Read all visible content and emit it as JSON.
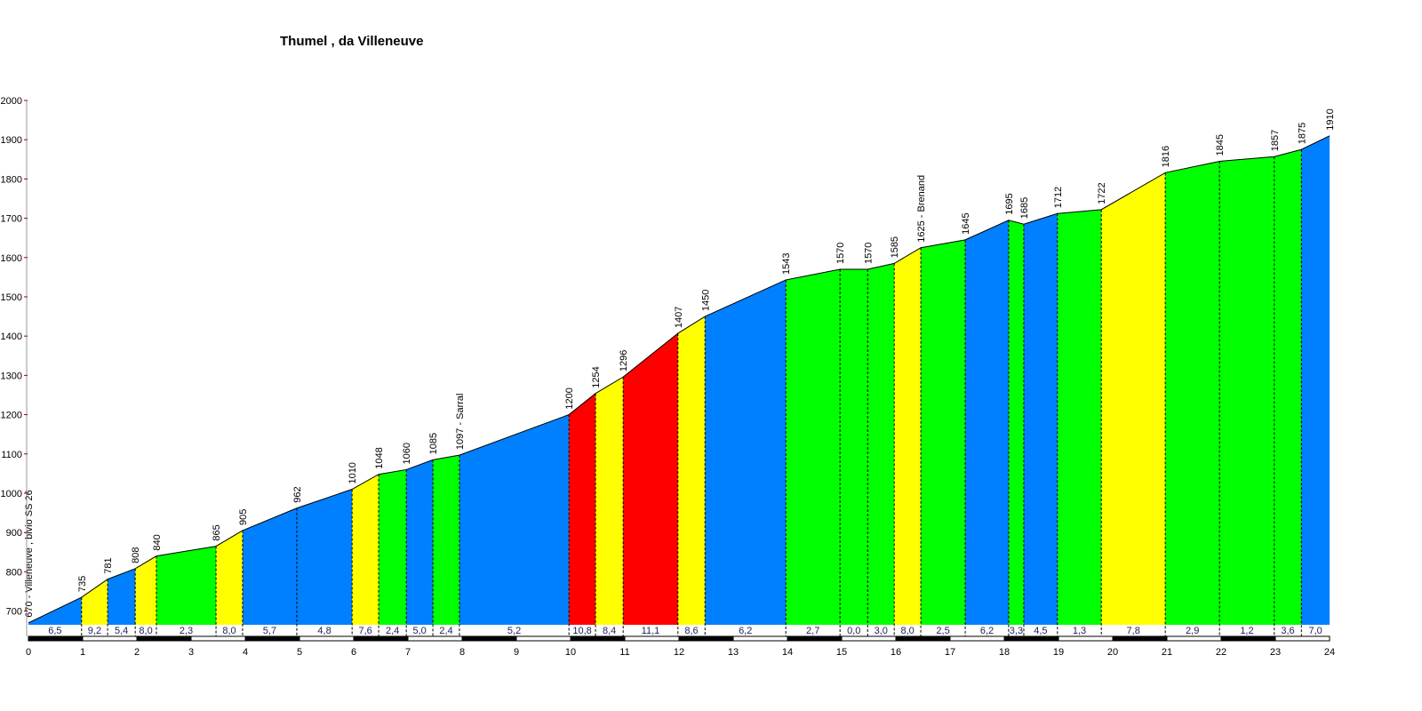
{
  "chart_data": {
    "type": "area",
    "title": "Thumel , da Villeneuve",
    "xlabel": "",
    "ylabel": "",
    "xlim": [
      0,
      24
    ],
    "ylim": [
      665,
      2000
    ],
    "x_ticks": [
      0,
      1,
      2,
      3,
      4,
      5,
      6,
      7,
      8,
      9,
      10,
      11,
      12,
      13,
      14,
      15,
      16,
      17,
      18,
      19,
      20,
      21,
      22,
      23,
      24
    ],
    "y_ticks": [
      700,
      800,
      900,
      1000,
      1100,
      1200,
      1300,
      1400,
      1500,
      1600,
      1700,
      1800,
      1900,
      2000
    ],
    "points": [
      {
        "km": 0.0,
        "elev": 670,
        "label": "670 - Villeneuve , bivio SS 26"
      },
      {
        "km": 0.98,
        "elev": 735,
        "label": "735"
      },
      {
        "km": 1.46,
        "elev": 781,
        "label": "781"
      },
      {
        "km": 1.97,
        "elev": 808,
        "label": "808"
      },
      {
        "km": 2.36,
        "elev": 840,
        "label": "840"
      },
      {
        "km": 3.46,
        "elev": 865,
        "label": "865"
      },
      {
        "km": 3.95,
        "elev": 905,
        "label": "905"
      },
      {
        "km": 4.95,
        "elev": 962,
        "label": "962"
      },
      {
        "km": 5.97,
        "elev": 1010,
        "label": "1010"
      },
      {
        "km": 6.46,
        "elev": 1048,
        "label": "1048"
      },
      {
        "km": 6.97,
        "elev": 1060,
        "label": "1060"
      },
      {
        "km": 7.46,
        "elev": 1085,
        "label": "1085"
      },
      {
        "km": 7.95,
        "elev": 1097,
        "label": "1097 - Sarral"
      },
      {
        "km": 9.97,
        "elev": 1200,
        "label": "1200"
      },
      {
        "km": 10.46,
        "elev": 1254,
        "label": "1254"
      },
      {
        "km": 10.97,
        "elev": 1296,
        "label": "1296"
      },
      {
        "km": 11.98,
        "elev": 1407,
        "label": "1407"
      },
      {
        "km": 12.48,
        "elev": 1450,
        "label": "1450"
      },
      {
        "km": 13.97,
        "elev": 1543,
        "label": "1543"
      },
      {
        "km": 14.97,
        "elev": 1570,
        "label": "1570"
      },
      {
        "km": 15.48,
        "elev": 1570,
        "label": "1570"
      },
      {
        "km": 15.97,
        "elev": 1585,
        "label": "1585"
      },
      {
        "km": 16.46,
        "elev": 1625,
        "label": "1625 - Brenand"
      },
      {
        "km": 17.28,
        "elev": 1645,
        "label": "1645"
      },
      {
        "km": 18.08,
        "elev": 1695,
        "label": "1695"
      },
      {
        "km": 18.36,
        "elev": 1685,
        "label": "1685"
      },
      {
        "km": 18.98,
        "elev": 1712,
        "label": "1712"
      },
      {
        "km": 19.79,
        "elev": 1722,
        "label": "1722"
      },
      {
        "km": 20.97,
        "elev": 1816,
        "label": "1816"
      },
      {
        "km": 21.97,
        "elev": 1845,
        "label": "1845"
      },
      {
        "km": 22.98,
        "elev": 1857,
        "label": "1857"
      },
      {
        "km": 23.48,
        "elev": 1875,
        "label": "1875"
      },
      {
        "km": 24.0,
        "elev": 1910,
        "label": "1910"
      }
    ],
    "segments": [
      {
        "gradient": "6,5",
        "color": "#0080ff"
      },
      {
        "gradient": "9,2",
        "color": "#ffff00"
      },
      {
        "gradient": "5,4",
        "color": "#0080ff"
      },
      {
        "gradient": "8,0",
        "color": "#ffff00"
      },
      {
        "gradient": "2,3",
        "color": "#00ff00"
      },
      {
        "gradient": "8,0",
        "color": "#ffff00"
      },
      {
        "gradient": "5,7",
        "color": "#0080ff"
      },
      {
        "gradient": "4,8",
        "color": "#0080ff"
      },
      {
        "gradient": "7,6",
        "color": "#ffff00"
      },
      {
        "gradient": "2,4",
        "color": "#00ff00"
      },
      {
        "gradient": "5,0",
        "color": "#0080ff"
      },
      {
        "gradient": "2,4",
        "color": "#00ff00"
      },
      {
        "gradient": "5,2",
        "color": "#0080ff"
      },
      {
        "gradient": "10,8",
        "color": "#ff0000"
      },
      {
        "gradient": "8,4",
        "color": "#ffff00"
      },
      {
        "gradient": "11,1",
        "color": "#ff0000"
      },
      {
        "gradient": "8,6",
        "color": "#ffff00"
      },
      {
        "gradient": "6,2",
        "color": "#0080ff"
      },
      {
        "gradient": "2,7",
        "color": "#00ff00"
      },
      {
        "gradient": "0,0",
        "color": "#00ff00"
      },
      {
        "gradient": "3,0",
        "color": "#00ff00"
      },
      {
        "gradient": "8,0",
        "color": "#ffff00"
      },
      {
        "gradient": "2,5",
        "color": "#00ff00"
      },
      {
        "gradient": "6,2",
        "color": "#0080ff"
      },
      {
        "gradient": "3,3",
        "color": "#00ff00"
      },
      {
        "gradient": "4,5",
        "color": "#0080ff"
      },
      {
        "gradient": "1,3",
        "color": "#00ff00"
      },
      {
        "gradient": "7,8",
        "color": "#ffff00"
      },
      {
        "gradient": "2,9",
        "color": "#00ff00"
      },
      {
        "gradient": "1,2",
        "color": "#00ff00"
      },
      {
        "gradient": "3,6",
        "color": "#00ff00"
      },
      {
        "gradient": "7,0",
        "color": "#0080ff"
      }
    ]
  }
}
